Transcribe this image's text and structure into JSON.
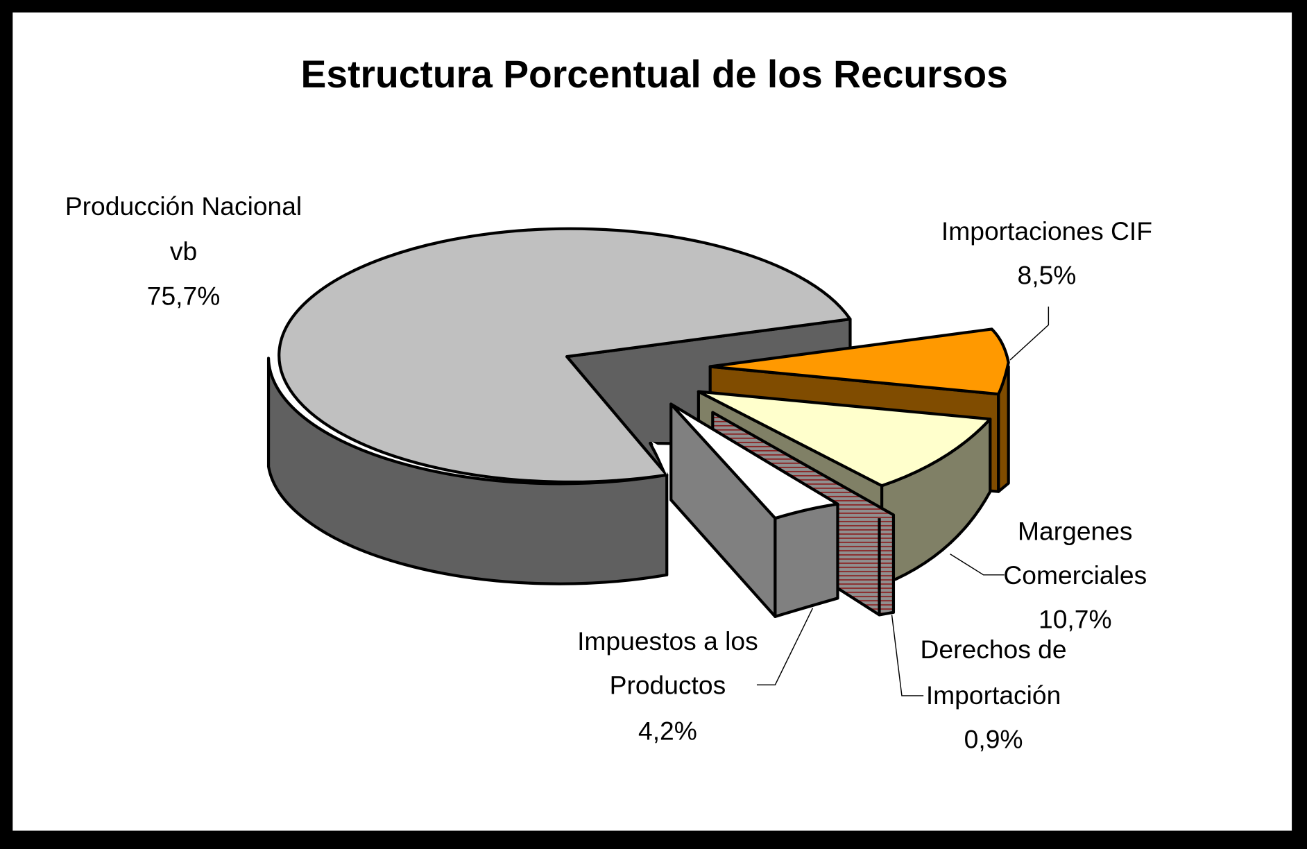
{
  "chart_data": {
    "type": "pie",
    "style": "3d-exploded",
    "title": "Estructura Porcentual de los Recursos",
    "slices": [
      {
        "label": "Producción Nacional vb",
        "label_lines": [
          "Producción Nacional",
          "vb"
        ],
        "value": 75.7,
        "value_label": "75,7%",
        "color": "#c0c0c0",
        "side_color": "#606060"
      },
      {
        "label": "Importaciones CIF",
        "label_lines": [
          "Importaciones CIF"
        ],
        "value": 8.5,
        "value_label": "8,5%",
        "color": "#ff9900",
        "side_color": "#804c00"
      },
      {
        "label": "Margenes Comerciales",
        "label_lines": [
          "Margenes",
          "Comerciales"
        ],
        "value": 10.7,
        "value_label": "10,7%",
        "color": "#ffffcc",
        "side_color": "#808066"
      },
      {
        "label": "Derechos de Importación",
        "label_lines": [
          "Derechos de",
          "Importación"
        ],
        "value": 0.9,
        "value_label": "0,9%",
        "color": "#a08080",
        "side_color": "#808080"
      },
      {
        "label": "Impuestos a los Productos",
        "label_lines": [
          "Impuestos a los",
          "Productos"
        ],
        "value": 4.2,
        "value_label": "4,2%",
        "color": "#ffffff",
        "side_color": "#808080"
      }
    ],
    "legend": "none"
  }
}
